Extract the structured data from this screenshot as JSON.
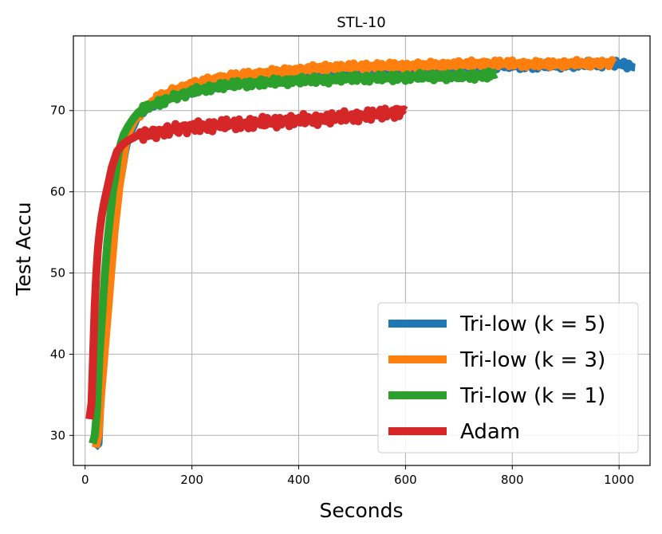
{
  "chart_data": {
    "type": "line",
    "title": "STL-10",
    "xlabel": "Seconds",
    "ylabel": "Test Accu",
    "xlim": [
      -22,
      1058
    ],
    "ylim": [
      26.3,
      79.2
    ],
    "xticks": [
      0,
      200,
      400,
      600,
      800,
      1000
    ],
    "yticks": [
      30,
      40,
      50,
      60,
      70
    ],
    "grid": true,
    "legend": {
      "position": "bottom-right",
      "entries": [
        "Tri-low (k = 5)",
        "Tri-low (k = 3)",
        "Tri-low (k = 1)",
        "Adam"
      ]
    },
    "series": [
      {
        "name": "Tri-low (k = 5)",
        "color": "#1f77b4",
        "points": [
          [
            18,
            28.5
          ],
          [
            25,
            29
          ],
          [
            30,
            36
          ],
          [
            35,
            40
          ],
          [
            40,
            44
          ],
          [
            45,
            48
          ],
          [
            50,
            52
          ],
          [
            55,
            56
          ],
          [
            60,
            59
          ],
          [
            65,
            61
          ],
          [
            70,
            63
          ],
          [
            75,
            65
          ],
          [
            80,
            66.5
          ],
          [
            90,
            68
          ],
          [
            100,
            69.5
          ],
          [
            120,
            70.5
          ],
          [
            140,
            71.5
          ],
          [
            160,
            72
          ],
          [
            200,
            72.5
          ],
          [
            250,
            73.2
          ],
          [
            300,
            73.7
          ],
          [
            350,
            74
          ],
          [
            400,
            74.5
          ],
          [
            450,
            74.7
          ],
          [
            500,
            75
          ],
          [
            550,
            75.2
          ],
          [
            600,
            75.3
          ],
          [
            650,
            75.3
          ],
          [
            700,
            75.5
          ],
          [
            750,
            75.5
          ],
          [
            800,
            75.5
          ],
          [
            850,
            75.5
          ],
          [
            900,
            75.6
          ],
          [
            950,
            75.7
          ],
          [
            1000,
            75.8
          ],
          [
            1030,
            75.3
          ]
        ]
      },
      {
        "name": "Tri-low (k = 3)",
        "color": "#ff7f0e",
        "points": [
          [
            20,
            28.5
          ],
          [
            25,
            30
          ],
          [
            30,
            35
          ],
          [
            35,
            39
          ],
          [
            40,
            43
          ],
          [
            45,
            47
          ],
          [
            50,
            51
          ],
          [
            55,
            55
          ],
          [
            60,
            58
          ],
          [
            65,
            61
          ],
          [
            70,
            63
          ],
          [
            75,
            65.5
          ],
          [
            80,
            67
          ],
          [
            90,
            68.5
          ],
          [
            100,
            69.5
          ],
          [
            120,
            70.8
          ],
          [
            140,
            71.7
          ],
          [
            160,
            72.3
          ],
          [
            200,
            73.2
          ],
          [
            250,
            74
          ],
          [
            300,
            74.4
          ],
          [
            350,
            74.7
          ],
          [
            400,
            75
          ],
          [
            450,
            75.3
          ],
          [
            500,
            75.4
          ],
          [
            550,
            75.5
          ],
          [
            600,
            75.5
          ],
          [
            650,
            75.6
          ],
          [
            700,
            75.7
          ],
          [
            750,
            75.8
          ],
          [
            800,
            75.8
          ],
          [
            850,
            75.7
          ],
          [
            900,
            75.8
          ],
          [
            950,
            75.8
          ],
          [
            990,
            75.9
          ]
        ]
      },
      {
        "name": "Tri-low (k = 1)",
        "color": "#2ca02c",
        "points": [
          [
            14,
            29
          ],
          [
            18,
            30
          ],
          [
            22,
            33
          ],
          [
            27,
            40
          ],
          [
            32,
            45
          ],
          [
            37,
            50
          ],
          [
            42,
            54
          ],
          [
            47,
            57
          ],
          [
            52,
            60
          ],
          [
            57,
            62
          ],
          [
            62,
            64.5
          ],
          [
            67,
            66
          ],
          [
            72,
            67
          ],
          [
            80,
            68
          ],
          [
            90,
            69
          ],
          [
            100,
            69.8
          ],
          [
            120,
            70.5
          ],
          [
            140,
            71
          ],
          [
            160,
            71.5
          ],
          [
            200,
            72.3
          ],
          [
            250,
            73
          ],
          [
            300,
            73.3
          ],
          [
            350,
            73.5
          ],
          [
            400,
            73.7
          ],
          [
            450,
            73.8
          ],
          [
            500,
            74
          ],
          [
            550,
            74
          ],
          [
            600,
            74.1
          ],
          [
            650,
            74.2
          ],
          [
            700,
            74.2
          ],
          [
            750,
            74.3
          ],
          [
            770,
            74.5
          ]
        ]
      },
      {
        "name": "Adam",
        "color": "#d62728",
        "points": [
          [
            8,
            32
          ],
          [
            12,
            34
          ],
          [
            15,
            40
          ],
          [
            18,
            46
          ],
          [
            21,
            50
          ],
          [
            24,
            53
          ],
          [
            27,
            55
          ],
          [
            31,
            57
          ],
          [
            35,
            58.5
          ],
          [
            40,
            60
          ],
          [
            45,
            61.5
          ],
          [
            50,
            63
          ],
          [
            55,
            64
          ],
          [
            60,
            65
          ],
          [
            70,
            65.8
          ],
          [
            80,
            66.3
          ],
          [
            100,
            67
          ],
          [
            130,
            67.3
          ],
          [
            160,
            67.6
          ],
          [
            200,
            68
          ],
          [
            250,
            68.2
          ],
          [
            300,
            68.4
          ],
          [
            350,
            68.6
          ],
          [
            400,
            68.8
          ],
          [
            450,
            69
          ],
          [
            500,
            69.3
          ],
          [
            550,
            69.5
          ],
          [
            600,
            70
          ]
        ]
      }
    ]
  }
}
